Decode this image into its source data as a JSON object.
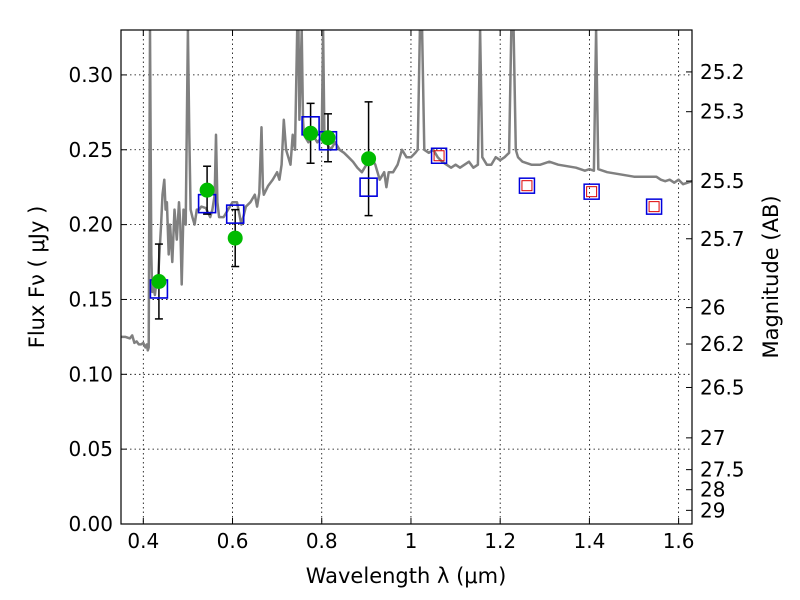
{
  "chart_data": {
    "type": "scatter",
    "xlabel": "Wavelength  λ (μm)",
    "ylabel": "Flux  Fν  ( μJy )",
    "y2label": "Magnitude (AB)",
    "xlim": [
      0.35,
      1.63
    ],
    "ylim": [
      0.0,
      0.33
    ],
    "x_ticks": [
      0.4,
      0.6,
      0.8,
      1.0,
      1.2,
      1.4,
      1.6
    ],
    "x_tick_labels": [
      "0.4",
      "0.6",
      "0.8",
      "1",
      "1.2",
      "1.4",
      "1.6"
    ],
    "y_ticks": [
      0.0,
      0.05,
      0.1,
      0.15,
      0.2,
      0.25,
      0.3
    ],
    "y_tick_labels": [
      "0.00",
      "0.05",
      "0.10",
      "0.15",
      "0.20",
      "0.25",
      "0.30"
    ],
    "magnitude_ticks": [
      25.2,
      25.3,
      25.5,
      25.7,
      26,
      26.2,
      26.5,
      27,
      27.5,
      28,
      29
    ],
    "magnitude_tick_labels": [
      "25.2",
      "25.3",
      "25.5",
      "25.7",
      "26",
      "26.2",
      "26.5",
      "27",
      "27.5",
      "28",
      "29"
    ],
    "grid": true,
    "colors": {
      "spectrum": "#808080",
      "observed": "#00bb00",
      "model_box": "#0000dd",
      "model_box_inner": "#dd0000",
      "error_bar": "#000000"
    },
    "observed_points": [
      {
        "x": 0.435,
        "y": 0.162,
        "err": 0.025
      },
      {
        "x": 0.543,
        "y": 0.223,
        "err": 0.016
      },
      {
        "x": 0.606,
        "y": 0.191,
        "err": 0.019
      },
      {
        "x": 0.775,
        "y": 0.261,
        "err": 0.02
      },
      {
        "x": 0.814,
        "y": 0.258,
        "err": 0.016
      },
      {
        "x": 0.905,
        "y": 0.244,
        "err": 0.038
      }
    ],
    "model_boxes": [
      {
        "x": 0.435,
        "y": 0.157,
        "inner": false
      },
      {
        "x": 0.543,
        "y": 0.214,
        "inner": false
      },
      {
        "x": 0.606,
        "y": 0.207,
        "inner": false
      },
      {
        "x": 0.775,
        "y": 0.266,
        "inner": false
      },
      {
        "x": 0.814,
        "y": 0.256,
        "inner": false
      },
      {
        "x": 0.905,
        "y": 0.225,
        "inner": false
      },
      {
        "x": 1.063,
        "y": 0.246,
        "inner": true
      },
      {
        "x": 1.26,
        "y": 0.226,
        "inner": true
      },
      {
        "x": 1.405,
        "y": 0.222,
        "inner": true
      },
      {
        "x": 1.545,
        "y": 0.212,
        "inner": true
      }
    ],
    "spectrum": [
      [
        0.35,
        0.125
      ],
      [
        0.36,
        0.125
      ],
      [
        0.37,
        0.124
      ],
      [
        0.375,
        0.126
      ],
      [
        0.38,
        0.121
      ],
      [
        0.385,
        0.122
      ],
      [
        0.39,
        0.12
      ],
      [
        0.395,
        0.12
      ],
      [
        0.4,
        0.121
      ],
      [
        0.405,
        0.118
      ],
      [
        0.408,
        0.12
      ],
      [
        0.41,
        0.116
      ],
      [
        0.412,
        0.118
      ],
      [
        0.415,
        0.33
      ],
      [
        0.418,
        0.18
      ],
      [
        0.42,
        0.155
      ],
      [
        0.423,
        0.158
      ],
      [
        0.426,
        0.153
      ],
      [
        0.428,
        0.158
      ],
      [
        0.43,
        0.165
      ],
      [
        0.433,
        0.163
      ],
      [
        0.436,
        0.18
      ],
      [
        0.44,
        0.2
      ],
      [
        0.443,
        0.22
      ],
      [
        0.447,
        0.23
      ],
      [
        0.45,
        0.21
      ],
      [
        0.453,
        0.215
      ],
      [
        0.457,
        0.18
      ],
      [
        0.46,
        0.2
      ],
      [
        0.465,
        0.175
      ],
      [
        0.47,
        0.21
      ],
      [
        0.475,
        0.19
      ],
      [
        0.48,
        0.215
      ],
      [
        0.483,
        0.2
      ],
      [
        0.486,
        0.16
      ],
      [
        0.49,
        0.21
      ],
      [
        0.495,
        0.2
      ],
      [
        0.5,
        0.33
      ],
      [
        0.503,
        0.26
      ],
      [
        0.506,
        0.21
      ],
      [
        0.51,
        0.205
      ],
      [
        0.515,
        0.2
      ],
      [
        0.52,
        0.21
      ],
      [
        0.525,
        0.21
      ],
      [
        0.53,
        0.212
      ],
      [
        0.54,
        0.211
      ],
      [
        0.55,
        0.205
      ],
      [
        0.555,
        0.21
      ],
      [
        0.56,
        0.22
      ],
      [
        0.563,
        0.26
      ],
      [
        0.566,
        0.215
      ],
      [
        0.57,
        0.205
      ],
      [
        0.58,
        0.205
      ],
      [
        0.59,
        0.21
      ],
      [
        0.6,
        0.215
      ],
      [
        0.61,
        0.215
      ],
      [
        0.62,
        0.2
      ],
      [
        0.63,
        0.212
      ],
      [
        0.64,
        0.215
      ],
      [
        0.65,
        0.22
      ],
      [
        0.655,
        0.212
      ],
      [
        0.66,
        0.221
      ],
      [
        0.665,
        0.265
      ],
      [
        0.668,
        0.225
      ],
      [
        0.67,
        0.22
      ],
      [
        0.68,
        0.226
      ],
      [
        0.69,
        0.23
      ],
      [
        0.7,
        0.235
      ],
      [
        0.705,
        0.23
      ],
      [
        0.71,
        0.24
      ],
      [
        0.715,
        0.27
      ],
      [
        0.72,
        0.25
      ],
      [
        0.725,
        0.245
      ],
      [
        0.73,
        0.24
      ],
      [
        0.735,
        0.26
      ],
      [
        0.74,
        0.25
      ],
      [
        0.745,
        0.33
      ],
      [
        0.748,
        0.33
      ],
      [
        0.75,
        0.27
      ],
      [
        0.755,
        0.33
      ],
      [
        0.758,
        0.27
      ],
      [
        0.76,
        0.26
      ],
      [
        0.77,
        0.255
      ],
      [
        0.78,
        0.26
      ],
      [
        0.79,
        0.255
      ],
      [
        0.8,
        0.258
      ],
      [
        0.803,
        0.33
      ],
      [
        0.806,
        0.26
      ],
      [
        0.81,
        0.255
      ],
      [
        0.82,
        0.25
      ],
      [
        0.83,
        0.255
      ],
      [
        0.84,
        0.25
      ],
      [
        0.85,
        0.248
      ],
      [
        0.86,
        0.245
      ],
      [
        0.87,
        0.242
      ],
      [
        0.88,
        0.238
      ],
      [
        0.89,
        0.235
      ],
      [
        0.9,
        0.24
      ],
      [
        0.91,
        0.245
      ],
      [
        0.92,
        0.24
      ],
      [
        0.93,
        0.23
      ],
      [
        0.94,
        0.235
      ],
      [
        0.945,
        0.225
      ],
      [
        0.95,
        0.235
      ],
      [
        0.96,
        0.235
      ],
      [
        0.97,
        0.24
      ],
      [
        0.975,
        0.245
      ],
      [
        0.98,
        0.25
      ],
      [
        0.99,
        0.245
      ],
      [
        1.0,
        0.245
      ],
      [
        1.01,
        0.248
      ],
      [
        1.015,
        0.25
      ],
      [
        1.02,
        0.33
      ],
      [
        1.025,
        0.33
      ],
      [
        1.03,
        0.25
      ],
      [
        1.04,
        0.248
      ],
      [
        1.05,
        0.25
      ],
      [
        1.06,
        0.245
      ],
      [
        1.07,
        0.242
      ],
      [
        1.08,
        0.24
      ],
      [
        1.09,
        0.238
      ],
      [
        1.1,
        0.24
      ],
      [
        1.11,
        0.238
      ],
      [
        1.12,
        0.24
      ],
      [
        1.13,
        0.242
      ],
      [
        1.14,
        0.238
      ],
      [
        1.15,
        0.24
      ],
      [
        1.155,
        0.33
      ],
      [
        1.16,
        0.245
      ],
      [
        1.17,
        0.24
      ],
      [
        1.18,
        0.24
      ],
      [
        1.19,
        0.245
      ],
      [
        1.2,
        0.243
      ],
      [
        1.21,
        0.245
      ],
      [
        1.22,
        0.248
      ],
      [
        1.225,
        0.33
      ],
      [
        1.23,
        0.33
      ],
      [
        1.235,
        0.25
      ],
      [
        1.24,
        0.245
      ],
      [
        1.25,
        0.242
      ],
      [
        1.27,
        0.24
      ],
      [
        1.29,
        0.24
      ],
      [
        1.31,
        0.242
      ],
      [
        1.33,
        0.24
      ],
      [
        1.35,
        0.239
      ],
      [
        1.37,
        0.238
      ],
      [
        1.39,
        0.236
      ],
      [
        1.4,
        0.237
      ],
      [
        1.41,
        0.236
      ],
      [
        1.415,
        0.33
      ],
      [
        1.42,
        0.237
      ],
      [
        1.44,
        0.235
      ],
      [
        1.46,
        0.234
      ],
      [
        1.48,
        0.233
      ],
      [
        1.5,
        0.232
      ],
      [
        1.52,
        0.232
      ],
      [
        1.54,
        0.232
      ],
      [
        1.55,
        0.232
      ],
      [
        1.56,
        0.23
      ],
      [
        1.57,
        0.229
      ],
      [
        1.58,
        0.23
      ],
      [
        1.59,
        0.228
      ],
      [
        1.6,
        0.23
      ],
      [
        1.61,
        0.227
      ],
      [
        1.62,
        0.228
      ],
      [
        1.63,
        0.229
      ]
    ]
  }
}
